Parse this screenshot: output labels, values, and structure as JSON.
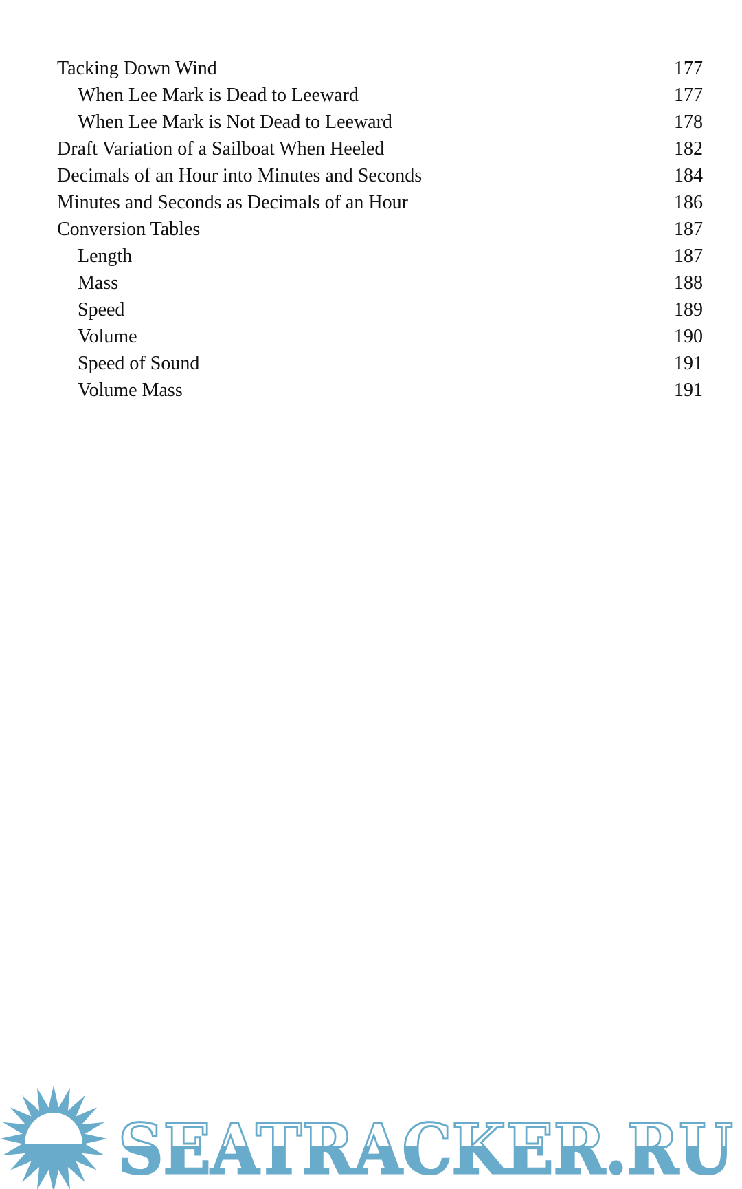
{
  "toc": [
    {
      "title": "Tacking Down Wind",
      "page": "177",
      "level": 1
    },
    {
      "title": "When Lee Mark is Dead to Leeward",
      "page": "177",
      "level": 2
    },
    {
      "title": "When Lee Mark is Not Dead to Leeward",
      "page": "178",
      "level": 2
    },
    {
      "title": "Draft Variation of a Sailboat When Heeled",
      "page": "182",
      "level": 1
    },
    {
      "title": "Decimals of an Hour into Minutes and Seconds",
      "page": "184",
      "level": 1
    },
    {
      "title": "Minutes and Seconds as Decimals of an Hour",
      "page": "186",
      "level": 1
    },
    {
      "title": "Conversion Tables",
      "page": "187",
      "level": 1
    },
    {
      "title": "Length",
      "page": "187",
      "level": 2
    },
    {
      "title": "Mass",
      "page": "188",
      "level": 2
    },
    {
      "title": "Speed",
      "page": "189",
      "level": 2
    },
    {
      "title": "Volume",
      "page": "190",
      "level": 2
    },
    {
      "title": "Speed of Sound",
      "page": "191",
      "level": 2
    },
    {
      "title": "Volume Mass",
      "page": "191",
      "level": 2
    }
  ],
  "watermark": {
    "text": "SEATRACKER.RU",
    "icon": "sun-icon",
    "color": "#69abcb"
  }
}
